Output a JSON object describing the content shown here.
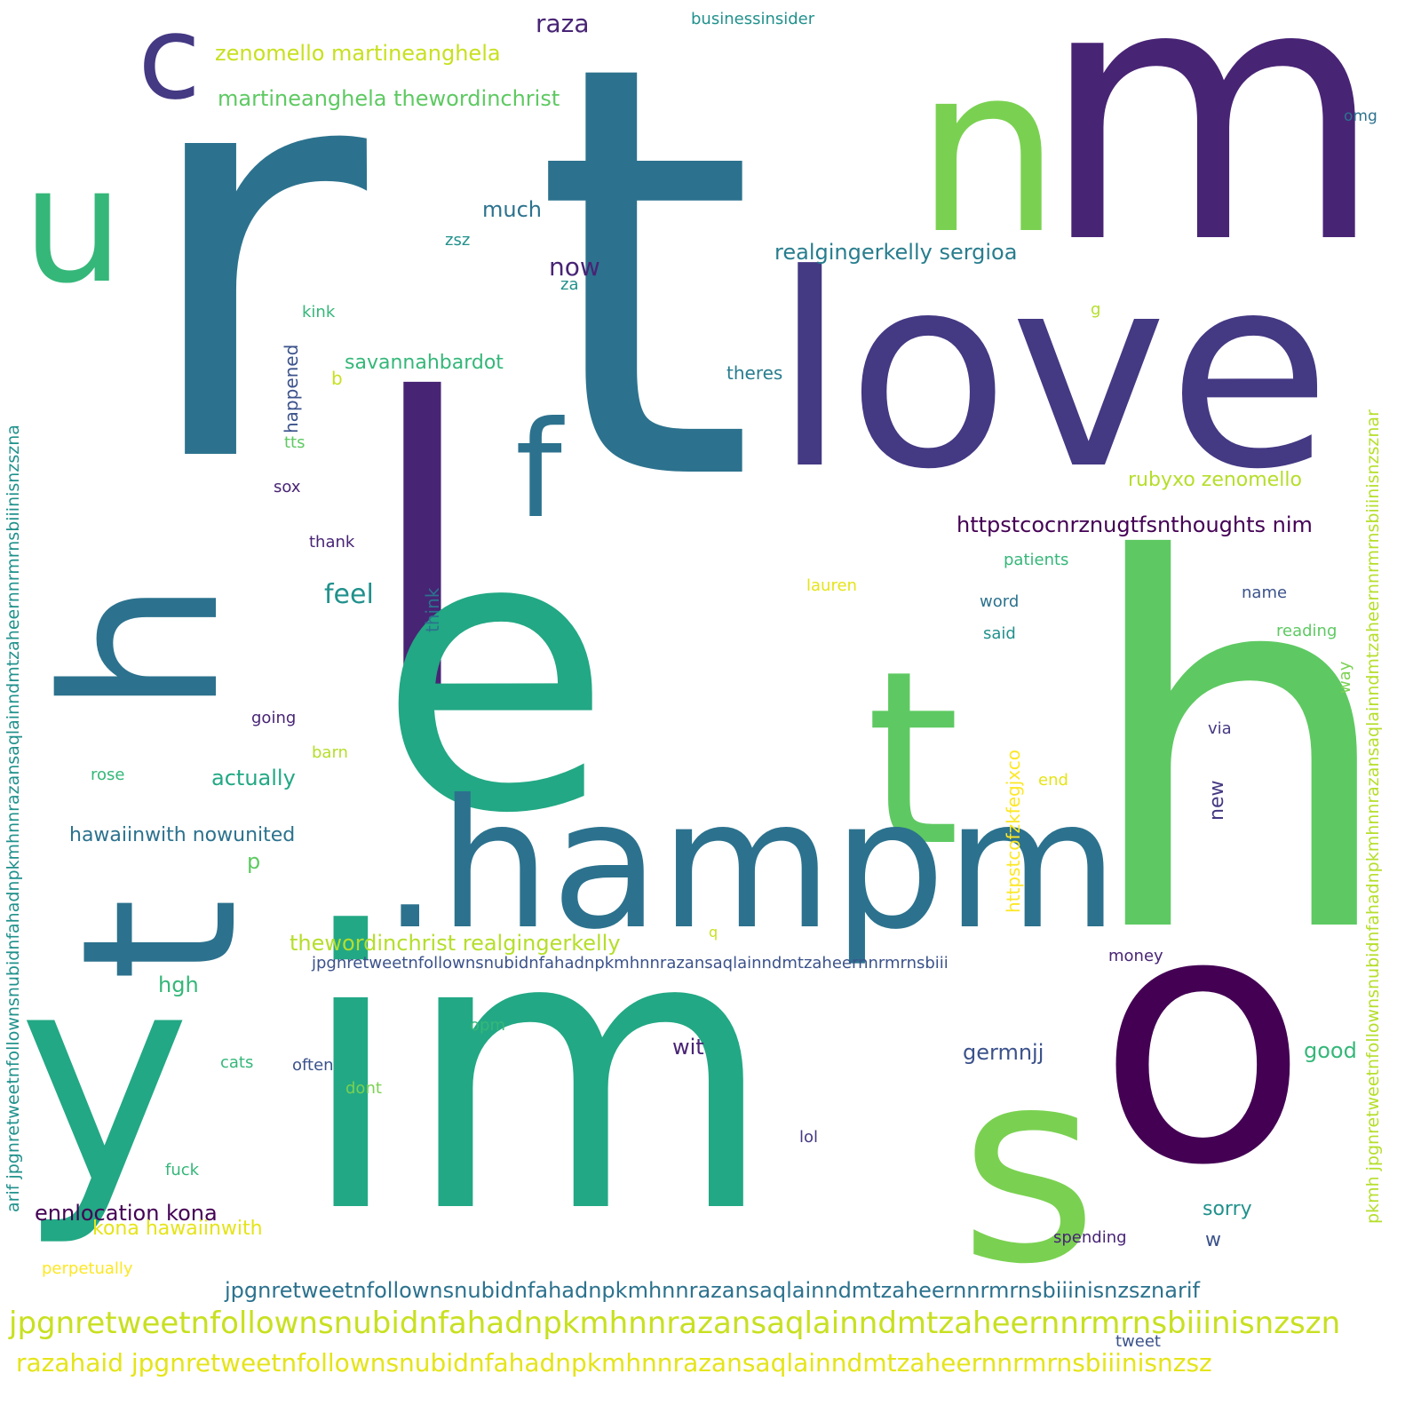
{
  "colors": {
    "dark-purple": "#440154",
    "purple": "#482475",
    "indigo": "#443983",
    "slate-blue": "#3b528b",
    "blue": "#2c728e",
    "teal-blue": "#287d8e",
    "teal": "#21918c",
    "sea-green": "#1fa187",
    "green": "#35b779",
    "lime-green": "#5ec962",
    "yellow-green": "#90d743",
    "lime": "#c8e020",
    "yellow": "#e5e419"
  },
  "words": [
    {
      "text": "r",
      "color": "#2c728e"
    },
    {
      "text": "t",
      "color": "#2c728e"
    },
    {
      "text": "m",
      "color": "#482475"
    },
    {
      "text": "n",
      "color": "#7ad151"
    },
    {
      "text": "c",
      "color": "#443983"
    },
    {
      "text": "u",
      "color": "#35b779"
    },
    {
      "text": "love",
      "color": "#443983"
    },
    {
      "text": "l",
      "color": "#482475"
    },
    {
      "text": "e",
      "color": "#22a884"
    },
    {
      "text": "f",
      "color": "#2c728e"
    },
    {
      "text": "h",
      "color": "#5ec962"
    },
    {
      "text": "h",
      "color": "#2c728e"
    },
    {
      "text": "t",
      "color": "#5ec962"
    },
    {
      "text": "t",
      "color": "#2c728e"
    },
    {
      "text": ".hampm",
      "color": "#2c728e"
    },
    {
      "text": "y",
      "color": "#22a884"
    },
    {
      "text": "im",
      "color": "#22a884"
    },
    {
      "text": "s",
      "color": "#7ad151"
    },
    {
      "text": "o",
      "color": "#440154"
    },
    {
      "text": "raza",
      "color": "#482475"
    },
    {
      "text": "businessinsider",
      "color": "#21918c"
    },
    {
      "text": "zenomello martineanghela",
      "color": "#c8e020"
    },
    {
      "text": "martineanghela thewordinchrist",
      "color": "#5ec962"
    },
    {
      "text": "omg",
      "color": "#2c728e"
    },
    {
      "text": "much",
      "color": "#2c728e"
    },
    {
      "text": "zsz",
      "color": "#21918c"
    },
    {
      "text": "now",
      "color": "#482475"
    },
    {
      "text": "za",
      "color": "#21918c"
    },
    {
      "text": "realgingerkelly sergioa",
      "color": "#287d8e"
    },
    {
      "text": "kink",
      "color": "#35b779"
    },
    {
      "text": "g",
      "color": "#b5de2b"
    },
    {
      "text": "savannahbardot",
      "color": "#35b779"
    },
    {
      "text": "b",
      "color": "#c8e020"
    },
    {
      "text": "theres",
      "color": "#287d8e"
    },
    {
      "text": "happened",
      "color": "#3b528b"
    },
    {
      "text": "tts",
      "color": "#5ec962"
    },
    {
      "text": "sox",
      "color": "#482475"
    },
    {
      "text": "thank",
      "color": "#482475"
    },
    {
      "text": "feel",
      "color": "#21918c"
    },
    {
      "text": "rubyxo zenomello",
      "color": "#b5de2b"
    },
    {
      "text": "httpstcocnrznugtfsnthoughts nim",
      "color": "#440154"
    },
    {
      "text": "patients",
      "color": "#35b779"
    },
    {
      "text": "lauren",
      "color": "#e5e419"
    },
    {
      "text": "think",
      "color": "#2c728e"
    },
    {
      "text": "word",
      "color": "#2c728e"
    },
    {
      "text": "name",
      "color": "#3b528b"
    },
    {
      "text": "said",
      "color": "#21918c"
    },
    {
      "text": "reading",
      "color": "#5ec962"
    },
    {
      "text": "way",
      "color": "#7ad151"
    },
    {
      "text": "going",
      "color": "#482475"
    },
    {
      "text": "via",
      "color": "#443983"
    },
    {
      "text": "barn",
      "color": "#b5de2b"
    },
    {
      "text": "rose",
      "color": "#35b779"
    },
    {
      "text": "actually",
      "color": "#22a884"
    },
    {
      "text": "httpstcofzkfegjxco",
      "color": "#fde725"
    },
    {
      "text": "end",
      "color": "#e5e419"
    },
    {
      "text": "new",
      "color": "#443983"
    },
    {
      "text": "hawaiinwith nowunited",
      "color": "#2c728e"
    },
    {
      "text": "p",
      "color": "#5ec962"
    },
    {
      "text": "thewordinchrist realgingerkelly",
      "color": "#b5de2b"
    },
    {
      "text": "q",
      "color": "#c8e020"
    },
    {
      "text": "jpgnretweetnfollownsnubidnfahadnpkmhnnrazansaqlainndmtzaheernnrmrnsbiii",
      "color": "#3b528b"
    },
    {
      "text": "money",
      "color": "#482475"
    },
    {
      "text": "hgh",
      "color": "#35b779"
    },
    {
      "text": "opm",
      "color": "#35b779"
    },
    {
      "text": "wit",
      "color": "#482475"
    },
    {
      "text": "germnjj",
      "color": "#3b528b"
    },
    {
      "text": "good",
      "color": "#35b779"
    },
    {
      "text": "cats",
      "color": "#35b779"
    },
    {
      "text": "often",
      "color": "#3b528b"
    },
    {
      "text": "dont",
      "color": "#7ad151"
    },
    {
      "text": "lol",
      "color": "#443983"
    },
    {
      "text": "fuck",
      "color": "#35b779"
    },
    {
      "text": "ennlocation kona",
      "color": "#440154"
    },
    {
      "text": "sorry",
      "color": "#21918c"
    },
    {
      "text": "kona hawaiinwith",
      "color": "#e5e419"
    },
    {
      "text": "w",
      "color": "#3b528b"
    },
    {
      "text": "spending",
      "color": "#482475"
    },
    {
      "text": "perpetually",
      "color": "#fde725"
    },
    {
      "text": "jpgnretweetnfollownsnubidnfahadnpkmhnnrazansaqlainndmtzaheernnrmrnsbiiinisnzsznarif",
      "color": "#2c728e"
    },
    {
      "text": "jpgnretweetnfollownsnubidnfahadnpkmhnnrazansaqlainndmtzaheernnrmrnsbiiinisnzszn",
      "color": "#c8e020"
    },
    {
      "text": "tweet",
      "color": "#3b528b"
    },
    {
      "text": "razahaid jpgnretweetnfollownsnubidnfahadnpkmhnnrazansaqlainndmtzaheernnrmrnsbiiinisnzsz",
      "color": "#e5e419"
    },
    {
      "text": "arif jpgnretweetnfollownsnubidnfahadnpkmhnnrazansaqlainndmtzaheernnrmrnsbiiinisnzszna",
      "color": "#21918c"
    },
    {
      "text": "pkmh jpgnretweetnfollownsnubidnfahadnpkmhnnrazansaqlainndmtzaheernnrmrnsbiiinisnzsznar",
      "color": "#b5de2b"
    }
  ]
}
